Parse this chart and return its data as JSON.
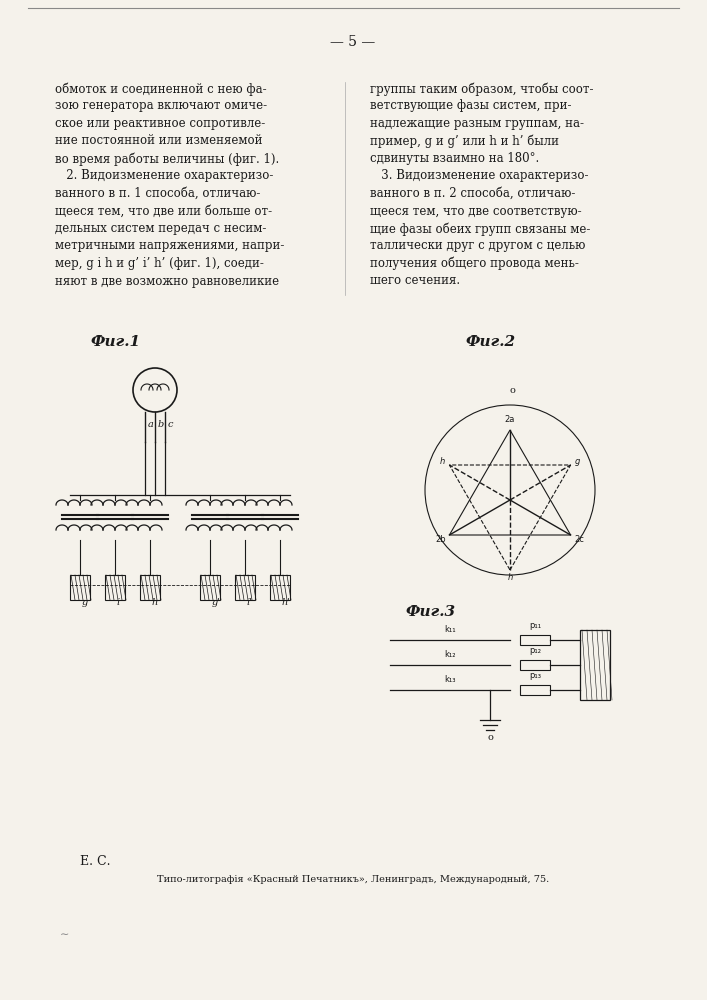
{
  "page_number": "— 5 —",
  "col1_text": [
    "обмоток и соединенной с нею фа-",
    "зою генератора включают омиче-",
    "ское или реактивное сопротивле-",
    "ние постоянной или изменяемой",
    "во время работы величины (фиг. 1).",
    "   2. Видоизменение охарактеризо-",
    "ванного в п. 1 способа, отличаю-",
    "щееся тем, что две или больше от-",
    "дельных систем передач с несим-",
    "метричными напряжениями, напри-",
    "мер, g i h и g’ i’ h’ (фиг. 1), соеди-",
    "няют в две возможно равновеликие"
  ],
  "col2_text": [
    "группы таким образом, чтобы соот-",
    "ветствующие фазы систем, при-",
    "надлежащие разным группам, на-",
    "пример, g и g’ или h и h’ были",
    "сдвинуты взаимно на 180°.",
    "   3. Видоизменение охарактеризо-",
    "ванного в п. 2 способа, отличаю-",
    "щееся тем, что две соответствую-",
    "щие фазы обеих групп связаны ме-",
    "таллически друг с другом с целью",
    "получения общего провода мень-",
    "шего сечения."
  ],
  "footer_left": "Е. С.",
  "footer_center": "Типо-литографiя «Красный Печатникъ», Ленинградъ, Международный, 75.",
  "background_color": "#f5f2eb",
  "text_color": "#1a1a1a",
  "fig1_label": "Фиг.1",
  "fig2_label": "Фиг.2",
  "fig3_label": "Фиг.3"
}
